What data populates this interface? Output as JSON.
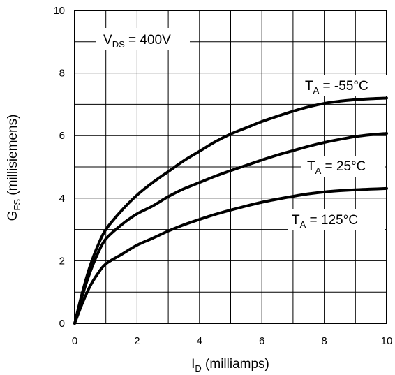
{
  "chart_data": {
    "type": "line",
    "xlabel": {
      "main": "I",
      "sub": "D",
      "rest": " (milliamps)"
    },
    "ylabel": {
      "main": "G",
      "sub": "FS",
      "rest": " (millisiemens)"
    },
    "xlim": [
      0,
      10
    ],
    "ylim": [
      0,
      10
    ],
    "x_ticks": [
      "0",
      "2",
      "4",
      "6",
      "8",
      "10"
    ],
    "y_ticks": [
      "0",
      "2",
      "4",
      "6",
      "8",
      "10"
    ],
    "x_grid_step": 1,
    "y_grid_step": 1,
    "grid": true,
    "annotation": {
      "main": "V",
      "sub": "DS",
      "rest": " = 400V"
    },
    "series": [
      {
        "name": {
          "main": "T",
          "sub": "A",
          "rest": " = -55°C"
        },
        "x": [
          0,
          0.25,
          0.5,
          0.75,
          1,
          1.5,
          2,
          2.5,
          3,
          3.5,
          4,
          4.5,
          5,
          5.5,
          6,
          6.5,
          7,
          7.5,
          8,
          8.5,
          9,
          9.5,
          10
        ],
        "y": [
          0,
          1.0,
          1.85,
          2.5,
          3.0,
          3.6,
          4.1,
          4.5,
          4.85,
          5.2,
          5.5,
          5.8,
          6.05,
          6.25,
          6.45,
          6.62,
          6.78,
          6.92,
          7.03,
          7.1,
          7.15,
          7.18,
          7.2
        ]
      },
      {
        "name": {
          "main": "T",
          "sub": "A",
          "rest": " = 25°C"
        },
        "x": [
          0,
          0.25,
          0.5,
          0.75,
          1,
          1.5,
          2,
          2.5,
          3,
          3.5,
          4,
          4.5,
          5,
          5.5,
          6,
          6.5,
          7,
          7.5,
          8,
          8.5,
          9,
          9.5,
          10
        ],
        "y": [
          0,
          0.9,
          1.65,
          2.25,
          2.7,
          3.15,
          3.5,
          3.75,
          4.05,
          4.3,
          4.5,
          4.7,
          4.88,
          5.05,
          5.22,
          5.38,
          5.52,
          5.66,
          5.78,
          5.88,
          5.97,
          6.03,
          6.07
        ]
      },
      {
        "name": {
          "main": "T",
          "sub": "A",
          "rest": " = 125°C"
        },
        "x": [
          0,
          0.25,
          0.5,
          0.75,
          1,
          1.5,
          2,
          2.5,
          3,
          3.5,
          4,
          4.5,
          5,
          5.5,
          6,
          6.5,
          7,
          7.5,
          8,
          8.5,
          9,
          9.5,
          10
        ],
        "y": [
          0,
          0.65,
          1.2,
          1.6,
          1.9,
          2.2,
          2.5,
          2.72,
          2.95,
          3.15,
          3.32,
          3.48,
          3.62,
          3.75,
          3.87,
          3.97,
          4.06,
          4.14,
          4.2,
          4.24,
          4.27,
          4.29,
          4.31
        ]
      }
    ],
    "line_color": "#000000",
    "grid_color": "#000000"
  }
}
